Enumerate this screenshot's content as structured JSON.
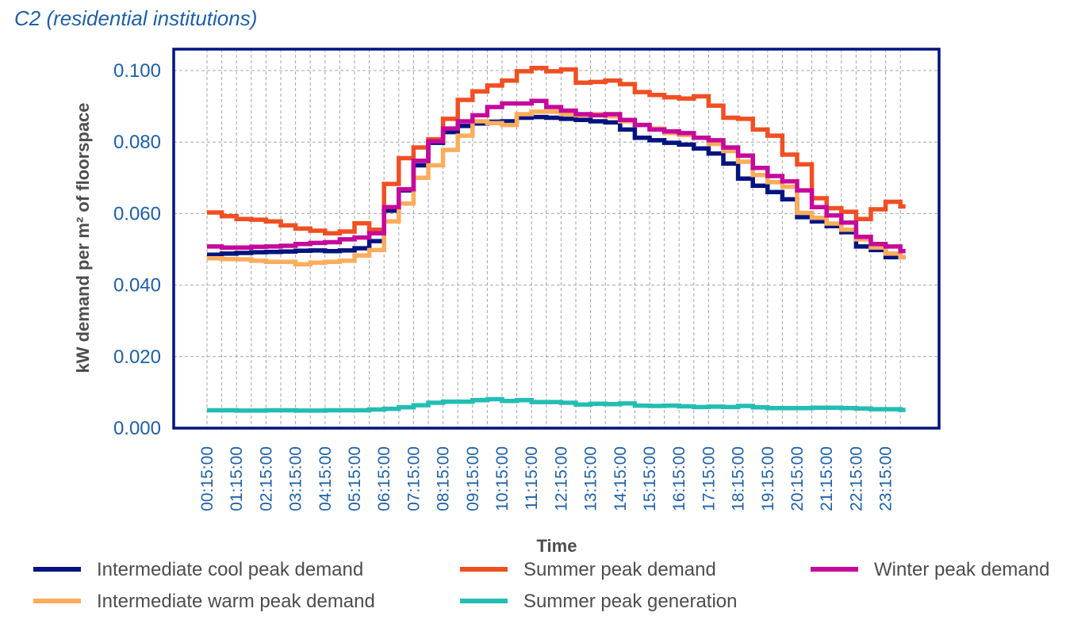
{
  "chart_data": {
    "type": "line",
    "title": "C2 (residential institutions)",
    "xlabel": "Time",
    "ylabel": "kW demand per m² of floorspace",
    "ylim": [
      0,
      0.1
    ],
    "yticks": [
      "0.000",
      "0.020",
      "0.040",
      "0.060",
      "0.080",
      "0.100"
    ],
    "grid": true,
    "legend_position": "bottom",
    "step": true,
    "x_tick_labels": [
      "00:15:00",
      "01:15:00",
      "02:15:00",
      "03:15:00",
      "04:15:00",
      "05:15:00",
      "06:15:00",
      "07:15:00",
      "08:15:00",
      "09:15:00",
      "10:15:00",
      "11:15:00",
      "12:15:00",
      "13:15:00",
      "14:15:00",
      "15:15:00",
      "16:15:00",
      "17:15:00",
      "18:15:00",
      "19:15:00",
      "20:15:00",
      "21:15:00",
      "22:15:00",
      "23:15:00"
    ],
    "x": [
      "00:15:00",
      "00:45:00",
      "01:15:00",
      "01:45:00",
      "02:15:00",
      "02:45:00",
      "03:15:00",
      "03:45:00",
      "04:15:00",
      "04:45:00",
      "05:15:00",
      "05:45:00",
      "06:15:00",
      "06:45:00",
      "07:15:00",
      "07:45:00",
      "08:15:00",
      "08:45:00",
      "09:15:00",
      "09:45:00",
      "10:15:00",
      "10:45:00",
      "11:15:00",
      "11:45:00",
      "12:15:00",
      "12:45:00",
      "13:15:00",
      "13:45:00",
      "14:15:00",
      "14:45:00",
      "15:15:00",
      "15:45:00",
      "16:15:00",
      "16:45:00",
      "17:15:00",
      "17:45:00",
      "18:15:00",
      "18:45:00",
      "19:15:00",
      "19:45:00",
      "20:15:00",
      "20:45:00",
      "21:15:00",
      "21:45:00",
      "22:15:00",
      "22:45:00",
      "23:15:00",
      "23:45:00"
    ],
    "series": [
      {
        "name": "Intermediate cool peak demand",
        "color": "#00137f",
        "values": [
          0.0485,
          0.0488,
          0.049,
          0.0492,
          0.0493,
          0.0494,
          0.0496,
          0.0497,
          0.0495,
          0.0497,
          0.0503,
          0.0523,
          0.0608,
          0.0665,
          0.0735,
          0.0798,
          0.0828,
          0.0845,
          0.0852,
          0.0857,
          0.0858,
          0.0868,
          0.087,
          0.0868,
          0.0865,
          0.0862,
          0.0858,
          0.0855,
          0.0835,
          0.0812,
          0.0805,
          0.0798,
          0.0793,
          0.0782,
          0.0768,
          0.074,
          0.0698,
          0.0678,
          0.066,
          0.064,
          0.059,
          0.0578,
          0.0565,
          0.0548,
          0.0508,
          0.0498,
          0.0478,
          0.0478
        ]
      },
      {
        "name": "Summer peak demand",
        "color": "#f04f23",
        "values": [
          0.0603,
          0.0593,
          0.0585,
          0.0583,
          0.0578,
          0.0567,
          0.0558,
          0.0552,
          0.0545,
          0.055,
          0.0573,
          0.0555,
          0.0683,
          0.0755,
          0.0785,
          0.0808,
          0.0865,
          0.0918,
          0.0942,
          0.0958,
          0.0972,
          0.0998,
          0.1007,
          0.0998,
          0.1003,
          0.0966,
          0.0968,
          0.0972,
          0.0962,
          0.094,
          0.0932,
          0.0925,
          0.0922,
          0.0928,
          0.0902,
          0.0868,
          0.0865,
          0.0835,
          0.0818,
          0.0765,
          0.0738,
          0.0643,
          0.0615,
          0.0605,
          0.0585,
          0.0612,
          0.0633,
          0.062
        ]
      },
      {
        "name": "Winter peak demand",
        "color": "#c6089c",
        "values": [
          0.0508,
          0.0505,
          0.0505,
          0.0507,
          0.0508,
          0.051,
          0.0515,
          0.0518,
          0.052,
          0.0528,
          0.0533,
          0.0545,
          0.0618,
          0.0668,
          0.0748,
          0.0802,
          0.0838,
          0.0858,
          0.0875,
          0.0898,
          0.0908,
          0.0908,
          0.0915,
          0.0898,
          0.0888,
          0.0878,
          0.0875,
          0.0878,
          0.0862,
          0.0848,
          0.0835,
          0.083,
          0.0825,
          0.0812,
          0.0805,
          0.0785,
          0.0762,
          0.0728,
          0.0705,
          0.069,
          0.0665,
          0.0618,
          0.0595,
          0.0575,
          0.0535,
          0.0515,
          0.0508,
          0.0495
        ]
      },
      {
        "name": "Intermediate warm peak demand",
        "color": "#fbad5c",
        "values": [
          0.0475,
          0.0473,
          0.0472,
          0.0468,
          0.0465,
          0.0465,
          0.0458,
          0.0463,
          0.0465,
          0.0468,
          0.0483,
          0.0498,
          0.0578,
          0.0628,
          0.07,
          0.0735,
          0.0778,
          0.0818,
          0.0858,
          0.0853,
          0.0848,
          0.0878,
          0.0885,
          0.0885,
          0.0878,
          0.0875,
          0.0878,
          0.0872,
          0.0858,
          0.0848,
          0.0838,
          0.0825,
          0.082,
          0.0812,
          0.0795,
          0.0775,
          0.0745,
          0.0708,
          0.0688,
          0.0675,
          0.0602,
          0.0588,
          0.0572,
          0.0555,
          0.0528,
          0.0505,
          0.0488,
          0.0478
        ]
      },
      {
        "name": "Summer peak generation",
        "color": "#23bdb3",
        "values": [
          0.005,
          0.005,
          0.0049,
          0.0049,
          0.005,
          0.005,
          0.0049,
          0.0049,
          0.005,
          0.005,
          0.005,
          0.0052,
          0.0054,
          0.0058,
          0.0064,
          0.0071,
          0.0074,
          0.0074,
          0.0078,
          0.0081,
          0.0076,
          0.0078,
          0.0073,
          0.0073,
          0.0071,
          0.0066,
          0.0068,
          0.0067,
          0.0069,
          0.0063,
          0.0062,
          0.0063,
          0.0061,
          0.0059,
          0.006,
          0.0059,
          0.0062,
          0.0058,
          0.0056,
          0.0056,
          0.0056,
          0.0057,
          0.0057,
          0.0056,
          0.0055,
          0.0053,
          0.0053,
          0.0051
        ]
      }
    ]
  }
}
